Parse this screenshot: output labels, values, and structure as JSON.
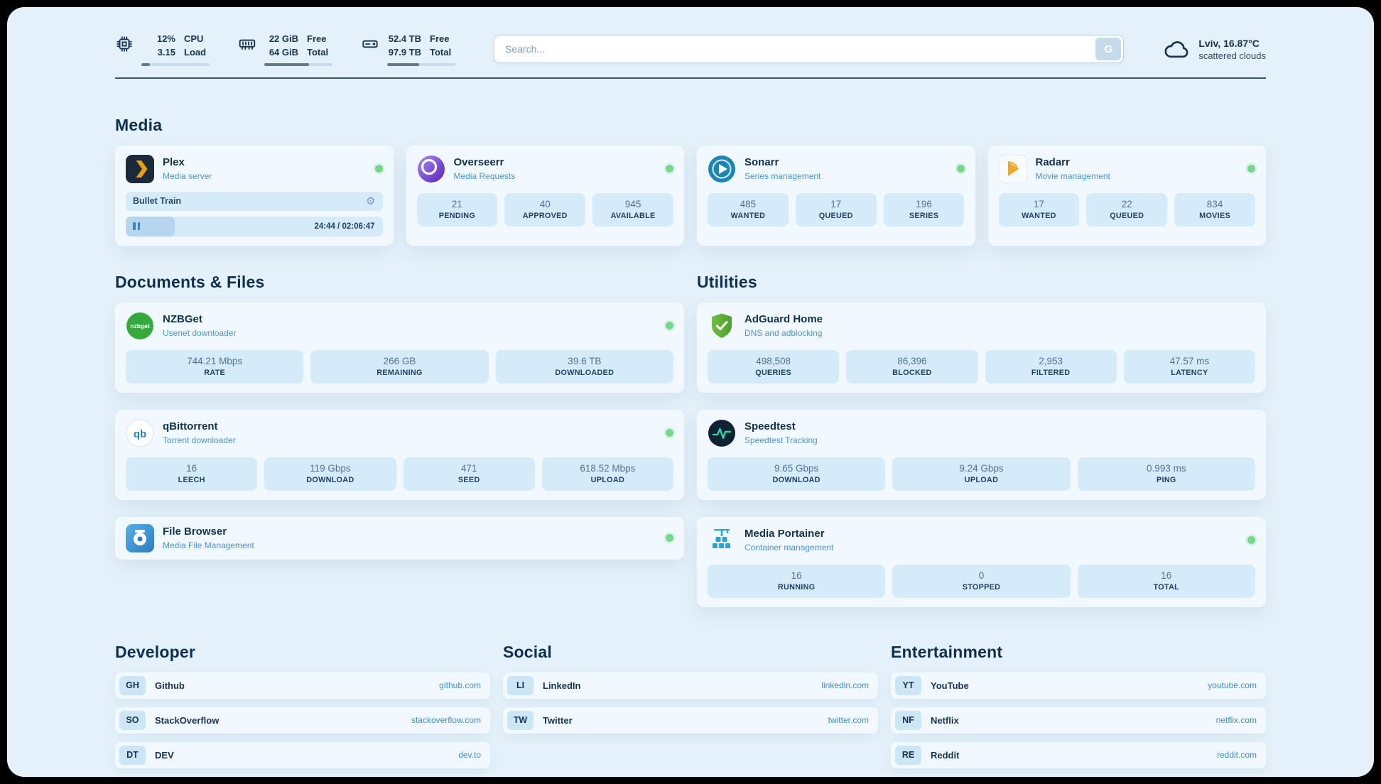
{
  "theme": {
    "background": "#e4f1fa",
    "accent": "#3d8fd1",
    "status_online": "#74d78c",
    "stat_box": "#d6ebf9"
  },
  "header": {
    "metrics": [
      {
        "icon": "cpu-icon",
        "row1_value": "12%",
        "row1_label": "CPU",
        "row2_value": "3.15",
        "row2_label": "Load",
        "progress": 12
      },
      {
        "icon": "ram-icon",
        "row1_value": "22 GiB",
        "row1_label": "Free",
        "row2_value": "64 GiB",
        "row2_label": "Total",
        "progress": 66
      },
      {
        "icon": "disk-icon",
        "row1_value": "52.4 TB",
        "row1_label": "Free",
        "row2_value": "97.9 TB",
        "row2_label": "Total",
        "progress": 47
      }
    ],
    "search": {
      "placeholder": "Search...",
      "button_label": "G"
    },
    "weather": {
      "location": "Lviv, 16.87°C",
      "condition": "scattered clouds"
    }
  },
  "sections": {
    "media": {
      "title": "Media",
      "cards": [
        {
          "name": "Plex",
          "subtitle": "Media server",
          "player": {
            "track": "Bullet Train",
            "time": "24:44 / 02:06:47",
            "progress": 19
          }
        },
        {
          "name": "Overseerr",
          "subtitle": "Media Requests",
          "stats": [
            {
              "value": "21",
              "label": "PENDING"
            },
            {
              "value": "40",
              "label": "APPROVED"
            },
            {
              "value": "945",
              "label": "AVAILABLE"
            }
          ]
        },
        {
          "name": "Sonarr",
          "subtitle": "Series management",
          "stats": [
            {
              "value": "485",
              "label": "WANTED"
            },
            {
              "value": "17",
              "label": "QUEUED"
            },
            {
              "value": "196",
              "label": "SERIES"
            }
          ]
        },
        {
          "name": "Radarr",
          "subtitle": "Movie management",
          "stats": [
            {
              "value": "17",
              "label": "WANTED"
            },
            {
              "value": "22",
              "label": "QUEUED"
            },
            {
              "value": "834",
              "label": "MOVIES"
            }
          ]
        }
      ]
    },
    "documents": {
      "title": "Documents & Files",
      "cards": [
        {
          "name": "NZBGet",
          "subtitle": "Usenet downloader",
          "stats": [
            {
              "value": "744.21 Mbps",
              "label": "RATE"
            },
            {
              "value": "266 GB",
              "label": "REMAINING"
            },
            {
              "value": "39.6 TB",
              "label": "DOWNLOADED"
            }
          ]
        },
        {
          "name": "qBittorrent",
          "subtitle": "Torrent downloader",
          "stats": [
            {
              "value": "16",
              "label": "LEECH"
            },
            {
              "value": "119 Gbps",
              "label": "DOWNLOAD"
            },
            {
              "value": "471",
              "label": "SEED"
            },
            {
              "value": "618.52 Mbps",
              "label": "UPLOAD"
            }
          ]
        },
        {
          "name": "File Browser",
          "subtitle": "Media File Management"
        }
      ]
    },
    "utilities": {
      "title": "Utilities",
      "cards": [
        {
          "name": "AdGuard Home",
          "subtitle": "DNS and adblocking",
          "stats": [
            {
              "value": "498,508",
              "label": "QUERIES"
            },
            {
              "value": "86,396",
              "label": "BLOCKED"
            },
            {
              "value": "2,953",
              "label": "FILTERED"
            },
            {
              "value": "47.57 ms",
              "label": "LATENCY"
            }
          ]
        },
        {
          "name": "Speedtest",
          "subtitle": "Speedtest Tracking",
          "stats": [
            {
              "value": "9.65 Gbps",
              "label": "DOWNLOAD"
            },
            {
              "value": "9.24 Gbps",
              "label": "UPLOAD"
            },
            {
              "value": "0.993 ms",
              "label": "PING"
            }
          ]
        },
        {
          "name": "Media Portainer",
          "subtitle": "Container management",
          "stats": [
            {
              "value": "16",
              "label": "RUNNING"
            },
            {
              "value": "0",
              "label": "STOPPED"
            },
            {
              "value": "16",
              "label": "TOTAL"
            }
          ]
        }
      ]
    },
    "bookmarks": [
      {
        "title": "Developer",
        "items": [
          {
            "abbr": "GH",
            "name": "Github",
            "url": "github.com"
          },
          {
            "abbr": "SO",
            "name": "StackOverflow",
            "url": "stackoverflow.com"
          },
          {
            "abbr": "DT",
            "name": "DEV",
            "url": "dev.to"
          }
        ]
      },
      {
        "title": "Social",
        "items": [
          {
            "abbr": "LI",
            "name": "LinkedIn",
            "url": "linkedin.com"
          },
          {
            "abbr": "TW",
            "name": "Twitter",
            "url": "twitter.com"
          }
        ]
      },
      {
        "title": "Entertainment",
        "items": [
          {
            "abbr": "YT",
            "name": "YouTube",
            "url": "youtube.com"
          },
          {
            "abbr": "NF",
            "name": "Netflix",
            "url": "netflix.com"
          },
          {
            "abbr": "RE",
            "name": "Reddit",
            "url": "reddit.com"
          }
        ]
      }
    ]
  }
}
